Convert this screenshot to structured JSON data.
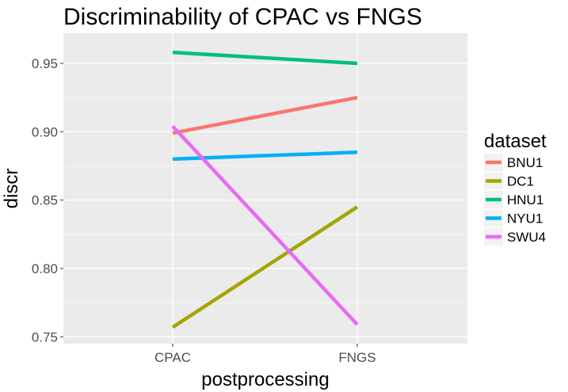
{
  "chart_data": {
    "type": "line",
    "title": "Discriminability of CPAC vs FNGS",
    "xlabel": "postprocessing",
    "ylabel": "discr",
    "categories": [
      "CPAC",
      "FNGS"
    ],
    "ylim": [
      0.745,
      0.972
    ],
    "yticks": [
      0.75,
      0.8,
      0.85,
      0.9,
      0.95
    ],
    "ytick_labels": [
      "0.75",
      "0.80",
      "0.85",
      "0.90",
      "0.95"
    ],
    "grid": true,
    "legend": {
      "title": "dataset",
      "position": "right"
    },
    "series": [
      {
        "name": "BNU1",
        "color": "#F8766D",
        "values": [
          0.899,
          0.925
        ]
      },
      {
        "name": "DC1",
        "color": "#A3A500",
        "values": [
          0.757,
          0.845
        ]
      },
      {
        "name": "HNU1",
        "color": "#00BF7D",
        "values": [
          0.958,
          0.95
        ]
      },
      {
        "name": "NYU1",
        "color": "#00B0F6",
        "values": [
          0.88,
          0.885
        ]
      },
      {
        "name": "SWU4",
        "color": "#E76BF3",
        "values": [
          0.904,
          0.759
        ]
      }
    ]
  }
}
